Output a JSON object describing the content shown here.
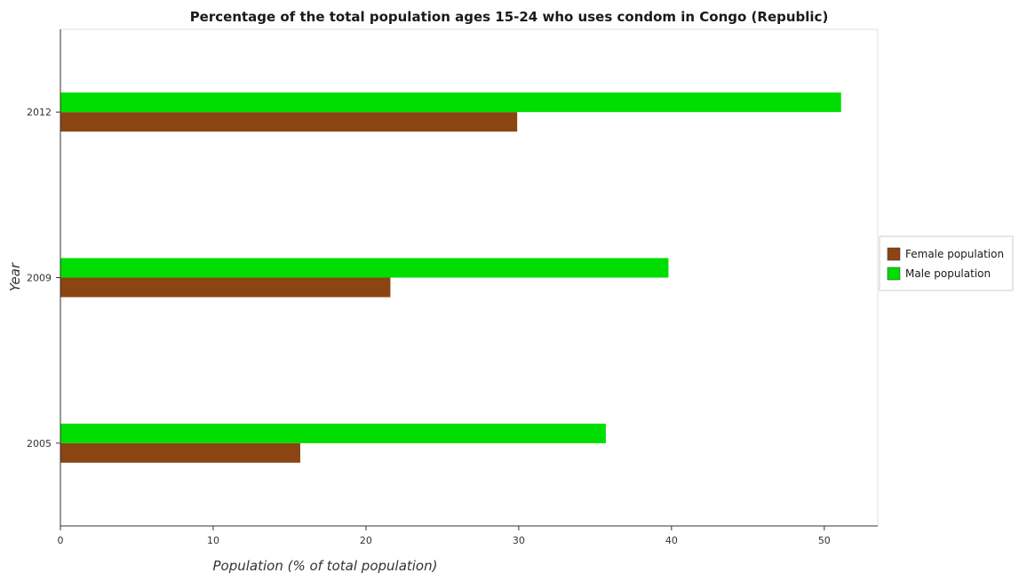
{
  "chart_data": {
    "type": "bar",
    "orientation": "horizontal",
    "title": "Percentage of the total population ages 15-24 who uses condom in Congo (Republic)",
    "xlabel": "Population (% of total population)",
    "ylabel": "Year",
    "categories": [
      "2005",
      "2009",
      "2012"
    ],
    "xlim": [
      0,
      53.5
    ],
    "xticks": [
      0,
      10,
      20,
      30,
      40,
      50
    ],
    "xtick_labels": [
      "0",
      "10",
      "20",
      "30",
      "40",
      "50"
    ],
    "grid": false,
    "legend_position": "right",
    "series": [
      {
        "name": "Female population",
        "color": "#8b4513",
        "values": [
          15.7,
          21.6,
          29.9
        ]
      },
      {
        "name": "Male population",
        "color": "#00dd00",
        "values": [
          35.7,
          39.8,
          51.1
        ]
      }
    ]
  }
}
